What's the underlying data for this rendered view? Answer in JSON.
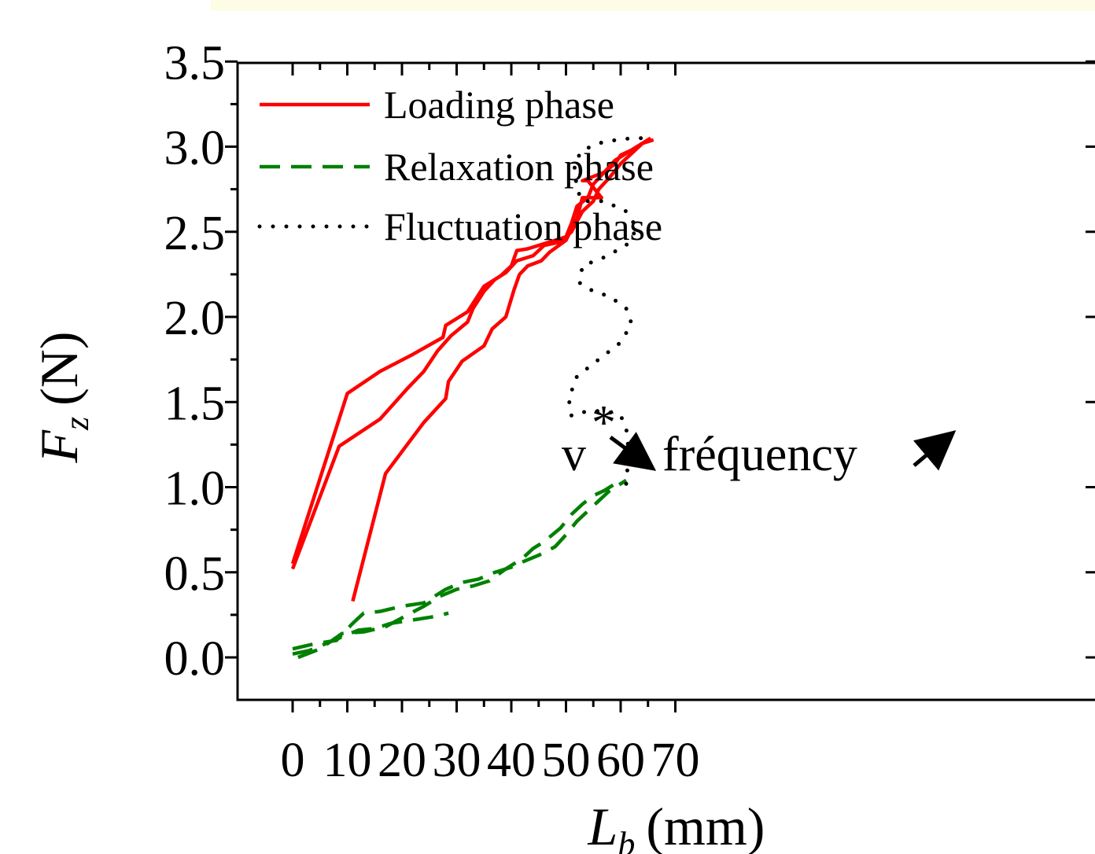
{
  "chart_data": {
    "type": "line",
    "xlabel": "L",
    "xlabel_sub": "b",
    "xlabel_unit": "(mm)",
    "ylabel": "F",
    "ylabel_sub": "z",
    "ylabel_unit": "(N)",
    "xlim": [
      -5,
      72
    ],
    "ylim": [
      -0.25,
      3.5
    ],
    "x_ticks": [
      0,
      10,
      20,
      30,
      40,
      50,
      60,
      70
    ],
    "x_tick_labels": [
      "0",
      "10",
      "20",
      "30",
      "40",
      "50",
      "60",
      "70"
    ],
    "y_ticks": [
      0.0,
      0.5,
      1.0,
      1.5,
      2.0,
      2.5,
      3.0,
      3.5
    ],
    "y_tick_labels": [
      "0.0",
      "0.5",
      "1.0",
      "1.5",
      "2.0",
      "2.5",
      "3.0",
      "3.5"
    ],
    "grid": false,
    "legend_position": "top-left",
    "annotation": {
      "v_text": "v",
      "star_text": "*",
      "freq_text": "fréquency",
      "color": "#000000"
    },
    "series": [
      {
        "name": "Loading phase",
        "style": "solid",
        "color": "#ff0000",
        "paths": [
          [
            [
              0,
              0.55
            ],
            [
              10,
              1.55
            ],
            [
              16,
              1.68
            ],
            [
              22,
              1.78
            ],
            [
              27.5,
              1.88
            ],
            [
              28,
              1.95
            ],
            [
              32,
              2.03
            ],
            [
              35,
              2.18
            ],
            [
              38,
              2.24
            ],
            [
              40,
              2.3
            ],
            [
              41,
              2.39
            ],
            [
              43,
              2.4
            ],
            [
              46,
              2.43
            ],
            [
              48,
              2.45
            ],
            [
              50,
              2.47
            ],
            [
              51,
              2.55
            ],
            [
              52,
              2.65
            ],
            [
              54,
              2.7
            ],
            [
              55,
              2.78
            ],
            [
              57,
              2.85
            ],
            [
              59,
              2.9
            ],
            [
              60,
              2.95
            ],
            [
              62,
              2.98
            ],
            [
              64,
              3.02
            ],
            [
              66,
              3.04
            ]
          ],
          [
            [
              0,
              0.52
            ],
            [
              8.5,
              1.24
            ],
            [
              16,
              1.4
            ],
            [
              21,
              1.58
            ],
            [
              24,
              1.68
            ],
            [
              26.5,
              1.8
            ],
            [
              29,
              1.89
            ],
            [
              32,
              1.97
            ],
            [
              33,
              2.05
            ],
            [
              35,
              2.15
            ],
            [
              37,
              2.22
            ],
            [
              39,
              2.26
            ],
            [
              41,
              2.33
            ],
            [
              44,
              2.36
            ],
            [
              46,
              2.42
            ],
            [
              49,
              2.44
            ],
            [
              51,
              2.5
            ],
            [
              53,
              2.62
            ],
            [
              55,
              2.68
            ],
            [
              56,
              2.75
            ],
            [
              58,
              2.82
            ],
            [
              60,
              2.9
            ],
            [
              62,
              2.96
            ],
            [
              64,
              3.02
            ]
          ],
          [
            [
              11,
              0.33
            ],
            [
              17,
              1.08
            ],
            [
              24,
              1.38
            ],
            [
              28,
              1.52
            ],
            [
              28.5,
              1.62
            ],
            [
              31,
              1.74
            ],
            [
              35,
              1.83
            ],
            [
              36.5,
              1.93
            ],
            [
              39,
              2.0
            ],
            [
              40.5,
              2.16
            ],
            [
              41.5,
              2.25
            ],
            [
              43,
              2.3
            ],
            [
              45.5,
              2.33
            ],
            [
              47,
              2.38
            ],
            [
              50,
              2.45
            ],
            [
              52,
              2.58
            ],
            [
              53,
              2.7
            ],
            [
              56.5,
              2.7
            ],
            [
              54,
              2.8
            ],
            [
              53,
              2.8
            ],
            [
              57,
              2.85
            ],
            [
              59,
              2.92
            ],
            [
              63,
              3.0
            ],
            [
              65.5,
              3.05
            ]
          ]
        ]
      },
      {
        "name": "Relaxation phase",
        "style": "dashed",
        "color": "#008000",
        "paths": [
          [
            [
              0,
              0.02
            ],
            [
              3,
              0.04
            ],
            [
              6,
              0.08
            ],
            [
              9,
              0.12
            ],
            [
              12,
              0.16
            ],
            [
              15,
              0.17
            ],
            [
              18,
              0.2
            ],
            [
              22,
              0.22
            ],
            [
              26,
              0.24
            ],
            [
              28.5,
              0.26
            ]
          ],
          [
            [
              0,
              0.05
            ],
            [
              4,
              0.08
            ],
            [
              8,
              0.1
            ],
            [
              11,
              0.2
            ],
            [
              13,
              0.26
            ],
            [
              16,
              0.27
            ],
            [
              20,
              0.3
            ],
            [
              24,
              0.32
            ],
            [
              26,
              0.36
            ],
            [
              28,
              0.4
            ],
            [
              31,
              0.44
            ],
            [
              34,
              0.46
            ],
            [
              37,
              0.5
            ],
            [
              40,
              0.53
            ],
            [
              42,
              0.56
            ],
            [
              45,
              0.6
            ],
            [
              48,
              0.65
            ],
            [
              50,
              0.72
            ],
            [
              52,
              0.8
            ],
            [
              54,
              0.86
            ],
            [
              56,
              0.92
            ],
            [
              58,
              0.98
            ],
            [
              61,
              1.04
            ]
          ],
          [
            [
              1,
              0.0
            ],
            [
              5,
              0.05
            ],
            [
              9,
              0.14
            ],
            [
              13,
              0.15
            ],
            [
              17,
              0.18
            ],
            [
              21,
              0.25
            ],
            [
              24,
              0.3
            ],
            [
              27,
              0.36
            ],
            [
              30,
              0.4
            ],
            [
              33,
              0.42
            ],
            [
              36,
              0.45
            ],
            [
              39,
              0.52
            ],
            [
              42,
              0.58
            ],
            [
              44,
              0.64
            ],
            [
              46,
              0.68
            ],
            [
              49,
              0.76
            ],
            [
              51,
              0.84
            ],
            [
              53,
              0.9
            ],
            [
              55,
              0.95
            ],
            [
              57,
              0.98
            ],
            [
              59,
              1.02
            ]
          ]
        ]
      },
      {
        "name": "Fluctuation phase",
        "style": "dotted",
        "color": "#000000",
        "paths": [
          [
            [
              61,
              1.02
            ],
            [
              61.5,
              1.2
            ],
            [
              61,
              1.35
            ],
            [
              60,
              1.42
            ],
            [
              57,
              1.45
            ],
            [
              53,
              1.44
            ],
            [
              51,
              1.42
            ],
            [
              50.5,
              1.52
            ],
            [
              52,
              1.65
            ],
            [
              56,
              1.75
            ],
            [
              60,
              1.85
            ],
            [
              62,
              1.96
            ],
            [
              61,
              2.05
            ],
            [
              58,
              2.12
            ],
            [
              55,
              2.15
            ],
            [
              52.5,
              2.2
            ],
            [
              53,
              2.3
            ],
            [
              57,
              2.35
            ],
            [
              61,
              2.42
            ],
            [
              63,
              2.52
            ],
            [
              61,
              2.62
            ],
            [
              57,
              2.68
            ],
            [
              53,
              2.68
            ],
            [
              52,
              2.75
            ],
            [
              51.5,
              2.9
            ],
            [
              53,
              2.98
            ],
            [
              57,
              3.03
            ],
            [
              62,
              3.05
            ],
            [
              65,
              3.05
            ]
          ]
        ]
      }
    ]
  }
}
